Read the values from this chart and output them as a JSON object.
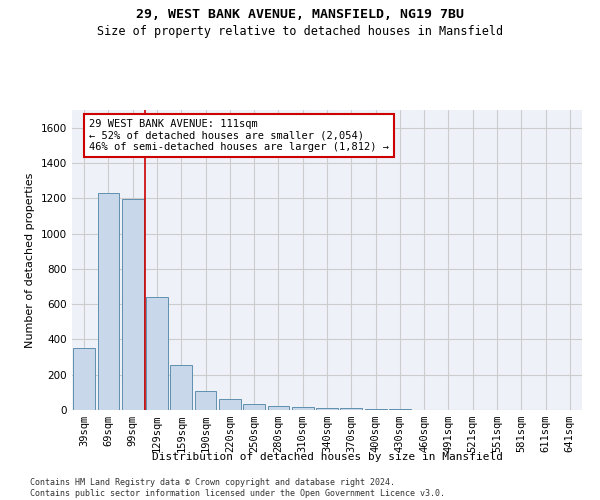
{
  "title1": "29, WEST BANK AVENUE, MANSFIELD, NG19 7BU",
  "title2": "Size of property relative to detached houses in Mansfield",
  "xlabel": "Distribution of detached houses by size in Mansfield",
  "ylabel": "Number of detached properties",
  "categories": [
    "39sqm",
    "69sqm",
    "99sqm",
    "129sqm",
    "159sqm",
    "190sqm",
    "220sqm",
    "250sqm",
    "280sqm",
    "310sqm",
    "340sqm",
    "370sqm",
    "400sqm",
    "430sqm",
    "460sqm",
    "491sqm",
    "521sqm",
    "551sqm",
    "581sqm",
    "611sqm",
    "641sqm"
  ],
  "values": [
    350,
    1230,
    1195,
    640,
    255,
    110,
    65,
    35,
    25,
    15,
    10,
    10,
    5,
    3,
    2,
    2,
    1,
    1,
    0,
    0,
    0
  ],
  "bar_color": "#c8d8ea",
  "bar_edge_color": "#6090b0",
  "bar_edge_width": 0.7,
  "red_line_x": 2.5,
  "annotation_text": "29 WEST BANK AVENUE: 111sqm\n← 52% of detached houses are smaller (2,054)\n46% of semi-detached houses are larger (1,812) →",
  "annotation_box_color": "#ffffff",
  "annotation_box_edge": "#cc0000",
  "red_line_color": "#cc0000",
  "ylim": [
    0,
    1700
  ],
  "yticks": [
    0,
    200,
    400,
    600,
    800,
    1000,
    1200,
    1400,
    1600
  ],
  "grid_color": "#cccccc",
  "bg_color": "#eef2f8",
  "footer": "Contains HM Land Registry data © Crown copyright and database right 2024.\nContains public sector information licensed under the Open Government Licence v3.0.",
  "title1_fontsize": 9.5,
  "title2_fontsize": 8.5,
  "xlabel_fontsize": 8,
  "ylabel_fontsize": 8,
  "tick_fontsize": 7.5,
  "annotation_fontsize": 7.5,
  "footer_fontsize": 6
}
